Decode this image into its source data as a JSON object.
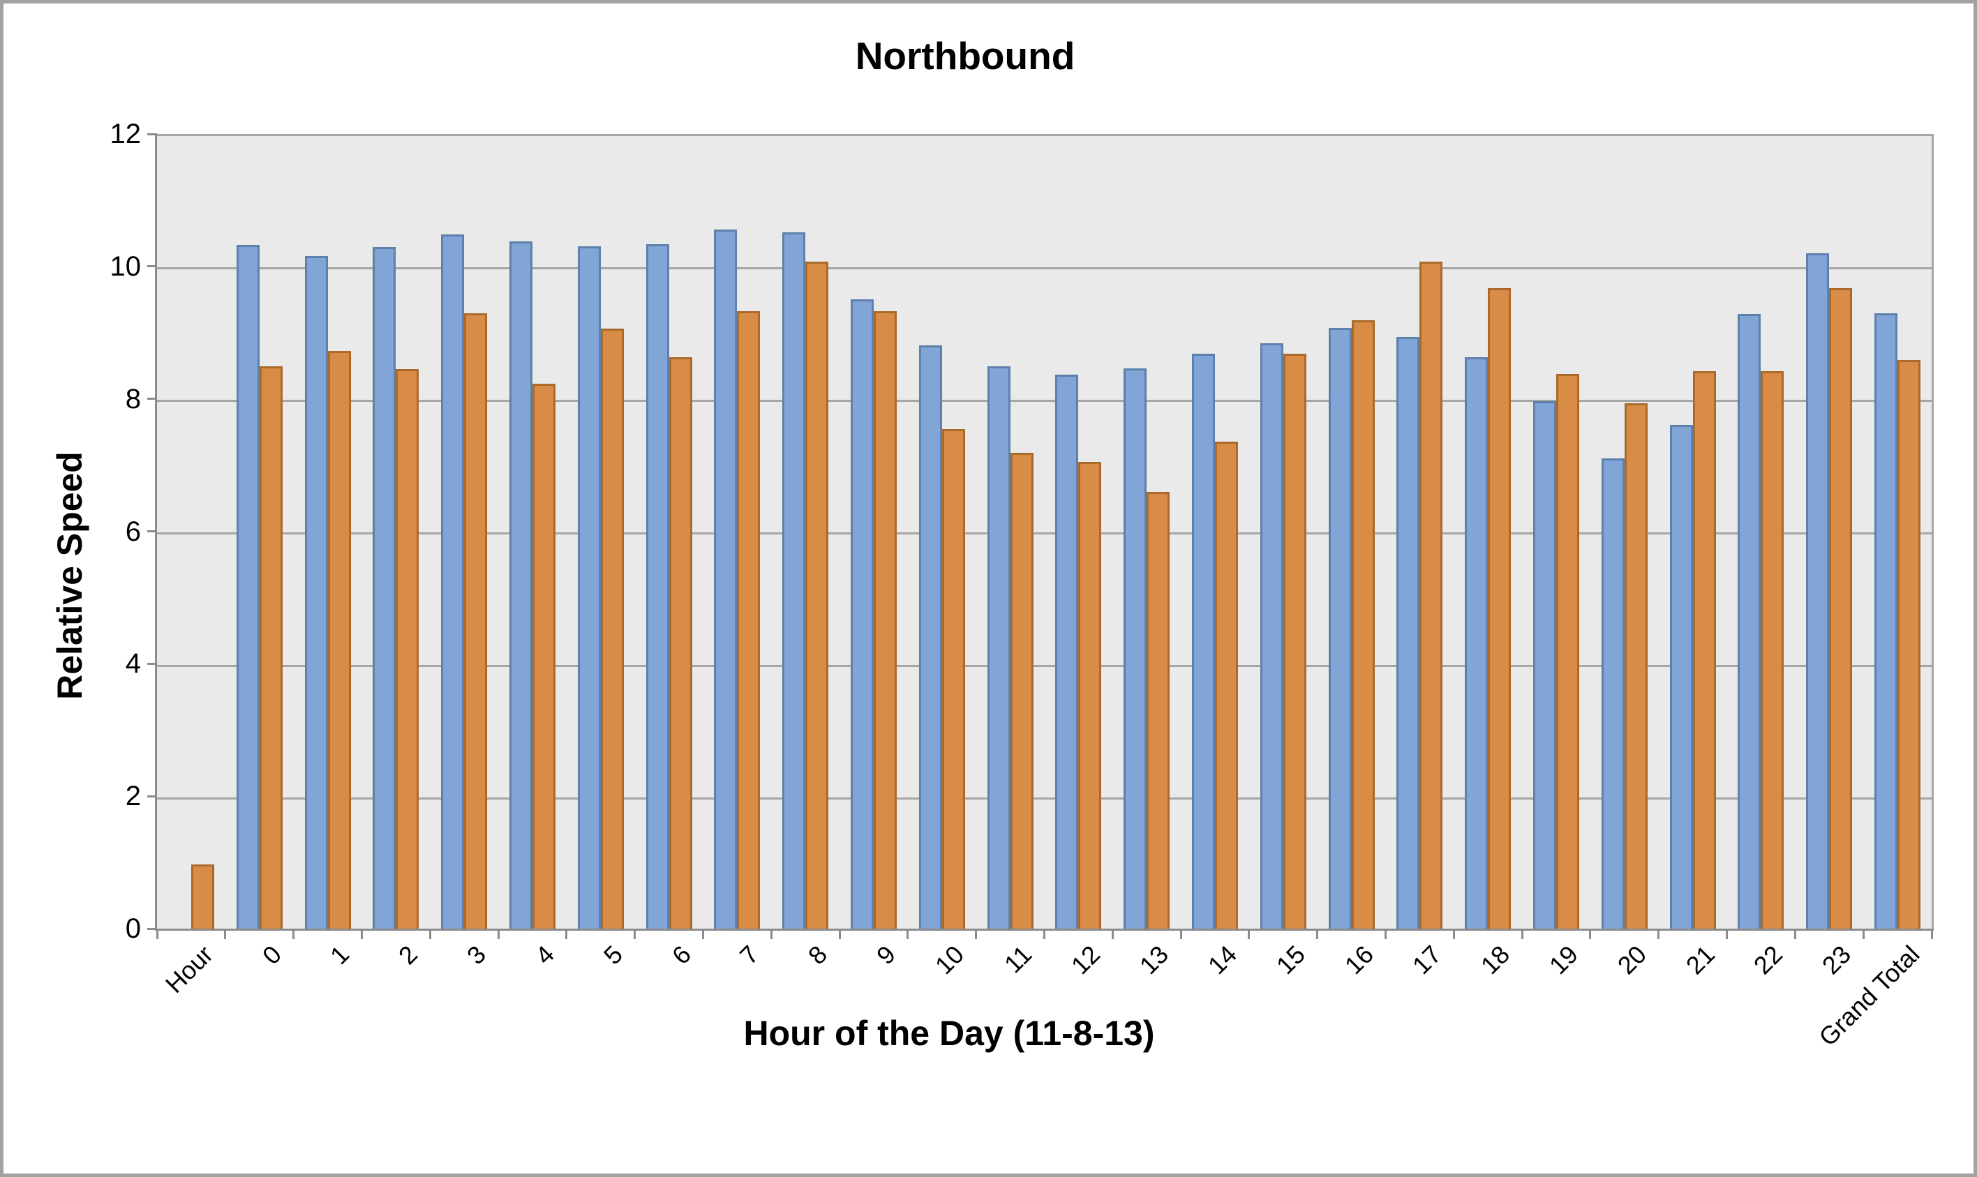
{
  "chart_data": {
    "type": "bar",
    "title": "Northbound",
    "xlabel": "Hour of the Day (11-8-13)",
    "ylabel": "Relative Speed",
    "ylim": [
      0,
      12
    ],
    "yticks": [
      0,
      2,
      4,
      6,
      8,
      10,
      12
    ],
    "grid": true,
    "legend": false,
    "plot_background": "#eaeaea",
    "gridline_color": "#a6a6a6",
    "axis_color": "#8c8c8c",
    "categories": [
      "Hour",
      "0",
      "1",
      "2",
      "3",
      "4",
      "5",
      "6",
      "7",
      "8",
      "9",
      "10",
      "11",
      "12",
      "13",
      "14",
      "15",
      "16",
      "17",
      "18",
      "19",
      "20",
      "21",
      "22",
      "23",
      "Grand Total"
    ],
    "series": [
      {
        "id": "blue",
        "fill": "#82a5d8",
        "border": "#5d81aa",
        "values": [
          null,
          10.36,
          10.19,
          10.33,
          10.51,
          10.41,
          10.34,
          10.37,
          10.59,
          10.55,
          9.54,
          8.84,
          8.52,
          8.4,
          8.49,
          8.71,
          8.87,
          9.1,
          8.97,
          8.66,
          8.0,
          7.13,
          7.64,
          9.31,
          10.23,
          9.32
        ]
      },
      {
        "id": "orange",
        "fill": "#d98c46",
        "border": "#a96a2b",
        "values": [
          1.0,
          8.52,
          8.76,
          8.48,
          9.32,
          8.26,
          9.09,
          8.66,
          9.36,
          10.1,
          9.36,
          7.57,
          7.22,
          7.08,
          6.63,
          7.39,
          8.71,
          9.22,
          10.1,
          9.7,
          8.41,
          7.96,
          8.45,
          8.45,
          9.7,
          8.62
        ]
      }
    ]
  }
}
